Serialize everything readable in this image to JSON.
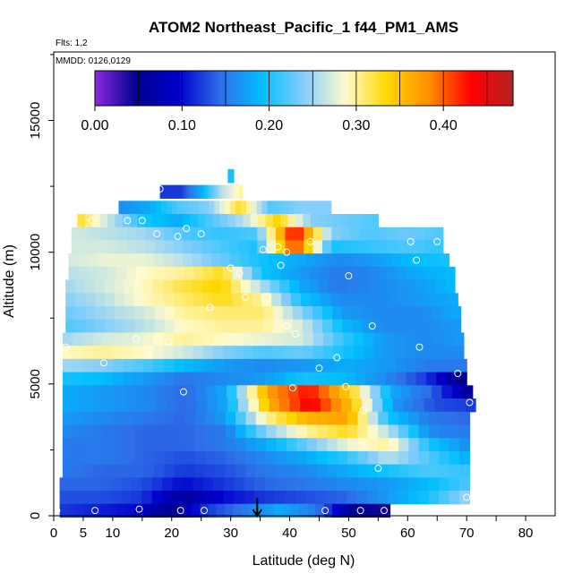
{
  "chart_data": {
    "type": "heatmap",
    "title": "ATOM2 Northeast_Pacific_1 f44_PM1_AMS",
    "subtitle_flights": "Flts: 1,2",
    "subtitle_dates": "MMDD: 0126,0129",
    "xlabel": "Latitude (deg N)",
    "ylabel": "Altitude (m)",
    "xlim": [
      0,
      85
    ],
    "ylim": [
      0,
      17600
    ],
    "x_ticks": [
      0,
      5,
      10,
      20,
      30,
      40,
      50,
      60,
      70,
      80
    ],
    "y_ticks": [
      0,
      5000,
      10000,
      15000
    ],
    "colorbar": {
      "range": [
        0,
        0.48
      ],
      "ticks": [
        "0.00",
        "0.10",
        "0.20",
        "0.30",
        "0.40"
      ],
      "tick_values": [
        0.0,
        0.1,
        0.2,
        0.3,
        0.4
      ],
      "colors": [
        "#8a2be2",
        "#00008b",
        "#0000cd",
        "#2e6fe8",
        "#00bfff",
        "#87cefa",
        "#fffacd",
        "#ffd700",
        "#ff8c00",
        "#ff0000",
        "#b22222"
      ]
    },
    "field_rows": [
      {
        "alt": 12900,
        "xmin": 29.5,
        "xmax": 30.5,
        "values": [
          0.2
        ]
      },
      {
        "alt": 12300,
        "xmin": 18,
        "xmax": 32,
        "values": [
          0.12,
          0.12,
          0.18,
          0.26,
          0.3
        ]
      },
      {
        "alt": 11700,
        "xmin": 11,
        "xmax": 47,
        "values": [
          0.16,
          0.18,
          0.22,
          0.24,
          0.33,
          0.22,
          0.24,
          0.24
        ]
      },
      {
        "alt": 11200,
        "xmin": 4,
        "xmax": 55,
        "values": [
          0.33,
          0.26,
          0.2,
          0.18,
          0.22,
          0.26,
          0.34,
          0.24,
          0.23,
          0.22
        ]
      },
      {
        "alt": 10700,
        "xmin": 3,
        "xmax": 66,
        "values": [
          0.27,
          0.26,
          0.25,
          0.22,
          0.21,
          0.22,
          0.44,
          0.24,
          0.22,
          0.23,
          0.22
        ]
      },
      {
        "alt": 10200,
        "xmin": 3,
        "xmax": 66,
        "values": [
          0.27,
          0.27,
          0.26,
          0.24,
          0.22,
          0.2,
          0.42,
          0.2,
          0.21,
          0.22,
          0.21
        ]
      },
      {
        "alt": 9700,
        "xmin": 2.5,
        "xmax": 67,
        "values": [
          0.27,
          0.28,
          0.28,
          0.26,
          0.23,
          0.2,
          0.18,
          0.16,
          0.17,
          0.19,
          0.2
        ]
      },
      {
        "alt": 9200,
        "xmin": 2.5,
        "xmax": 68,
        "values": [
          0.26,
          0.27,
          0.29,
          0.3,
          0.33,
          0.2,
          0.17,
          0.15,
          0.16,
          0.18,
          0.19
        ]
      },
      {
        "alt": 8700,
        "xmin": 2,
        "xmax": 68,
        "values": [
          0.25,
          0.27,
          0.29,
          0.32,
          0.34,
          0.26,
          0.18,
          0.15,
          0.16,
          0.17,
          0.19
        ]
      },
      {
        "alt": 8200,
        "xmin": 2,
        "xmax": 68.5,
        "values": [
          0.24,
          0.26,
          0.29,
          0.31,
          0.33,
          0.3,
          0.2,
          0.16,
          0.16,
          0.17,
          0.18
        ]
      },
      {
        "alt": 7700,
        "xmin": 2,
        "xmax": 69,
        "values": [
          0.23,
          0.25,
          0.27,
          0.3,
          0.31,
          0.31,
          0.24,
          0.17,
          0.16,
          0.16,
          0.18
        ]
      },
      {
        "alt": 7200,
        "xmin": 2,
        "xmax": 69,
        "values": [
          0.22,
          0.24,
          0.26,
          0.29,
          0.3,
          0.3,
          0.27,
          0.19,
          0.16,
          0.16,
          0.17
        ]
      },
      {
        "alt": 6700,
        "xmin": 1.5,
        "xmax": 69.5,
        "values": [
          0.25,
          0.27,
          0.28,
          0.3,
          0.29,
          0.28,
          0.27,
          0.21,
          0.17,
          0.16,
          0.17
        ]
      },
      {
        "alt": 6200,
        "xmin": 1.5,
        "xmax": 69.5,
        "values": [
          0.29,
          0.3,
          0.29,
          0.27,
          0.24,
          0.22,
          0.23,
          0.2,
          0.17,
          0.16,
          0.16
        ]
      },
      {
        "alt": 5700,
        "xmin": 1.5,
        "xmax": 70,
        "values": [
          0.25,
          0.24,
          0.22,
          0.19,
          0.17,
          0.16,
          0.17,
          0.18,
          0.17,
          0.15,
          0.15
        ]
      },
      {
        "alt": 5200,
        "xmin": 1.5,
        "xmax": 70,
        "values": [
          0.2,
          0.19,
          0.17,
          0.15,
          0.16,
          0.17,
          0.2,
          0.19,
          0.16,
          0.12,
          0.04
        ]
      },
      {
        "alt": 4700,
        "xmin": 1.5,
        "xmax": 71,
        "values": [
          0.18,
          0.17,
          0.16,
          0.14,
          0.18,
          0.37,
          0.43,
          0.34,
          0.18,
          0.14,
          0.05
        ]
      },
      {
        "alt": 4200,
        "xmin": 1.5,
        "xmax": 71.5,
        "values": [
          0.18,
          0.17,
          0.16,
          0.14,
          0.18,
          0.36,
          0.44,
          0.35,
          0.17,
          0.13,
          0.12
        ]
      },
      {
        "alt": 3700,
        "xmin": 1.5,
        "xmax": 70.5,
        "values": [
          0.17,
          0.16,
          0.15,
          0.14,
          0.17,
          0.3,
          0.36,
          0.37,
          0.2,
          0.15,
          0.14
        ]
      },
      {
        "alt": 3200,
        "xmin": 1.5,
        "xmax": 70.5,
        "values": [
          0.16,
          0.15,
          0.14,
          0.14,
          0.15,
          0.24,
          0.3,
          0.33,
          0.26,
          0.16,
          0.15
        ]
      },
      {
        "alt": 2700,
        "xmin": 1.5,
        "xmax": 70.5,
        "values": [
          0.15,
          0.15,
          0.14,
          0.14,
          0.15,
          0.18,
          0.23,
          0.28,
          0.3,
          0.2,
          0.16
        ]
      },
      {
        "alt": 2200,
        "xmin": 1.5,
        "xmax": 70.5,
        "values": [
          0.15,
          0.15,
          0.14,
          0.13,
          0.14,
          0.16,
          0.18,
          0.21,
          0.26,
          0.22,
          0.18
        ]
      },
      {
        "alt": 1700,
        "xmin": 1.5,
        "xmax": 70.5,
        "values": [
          0.15,
          0.14,
          0.14,
          0.12,
          0.13,
          0.15,
          0.16,
          0.18,
          0.2,
          0.22,
          0.21
        ]
      },
      {
        "alt": 1200,
        "xmin": 1,
        "xmax": 70.5,
        "values": [
          0.14,
          0.14,
          0.13,
          0.1,
          0.12,
          0.14,
          0.15,
          0.16,
          0.17,
          0.19,
          0.22
        ]
      },
      {
        "alt": 700,
        "xmin": 1,
        "xmax": 70.5,
        "values": [
          0.13,
          0.13,
          0.12,
          0.06,
          0.1,
          0.12,
          0.13,
          0.14,
          0.17,
          0.2,
          0.25
        ]
      },
      {
        "alt": 200,
        "xmin": 1,
        "xmax": 57,
        "values": [
          0.12,
          0.11,
          0.1,
          0.05,
          0.12,
          0.15,
          0.18,
          0.15,
          0.05,
          0.04
        ]
      }
    ],
    "sample_points": [
      [
        0.5,
        200
      ],
      [
        7,
        200
      ],
      [
        14.5,
        250
      ],
      [
        21.5,
        200
      ],
      [
        25.5,
        200
      ],
      [
        46,
        200
      ],
      [
        52,
        200
      ],
      [
        56,
        200
      ],
      [
        70,
        700
      ],
      [
        55,
        1800
      ],
      [
        52.5,
        4000
      ],
      [
        49.5,
        4900
      ],
      [
        40.5,
        4850
      ],
      [
        22,
        4700
      ],
      [
        70.5,
        4300
      ],
      [
        68.5,
        5400
      ],
      [
        45,
        5600
      ],
      [
        48,
        6000
      ],
      [
        62,
        6400
      ],
      [
        8.5,
        5800
      ],
      [
        2,
        6400
      ],
      [
        14,
        6700
      ],
      [
        19.5,
        6600
      ],
      [
        39.5,
        7200
      ],
      [
        54,
        7200
      ],
      [
        41,
        6900
      ],
      [
        26.5,
        7900
      ],
      [
        32.5,
        8300
      ],
      [
        30,
        9400
      ],
      [
        31.5,
        9200
      ],
      [
        38.5,
        9500
      ],
      [
        39.5,
        10000
      ],
      [
        50,
        9100
      ],
      [
        61.5,
        9700
      ],
      [
        65,
        10400
      ],
      [
        68.5,
        10400
      ],
      [
        60.5,
        10400
      ],
      [
        43.5,
        10400
      ],
      [
        38,
        10200
      ],
      [
        35.5,
        10100
      ],
      [
        25,
        10700
      ],
      [
        22.5,
        10900
      ],
      [
        21,
        10600
      ],
      [
        6.5,
        11200
      ],
      [
        12.5,
        11200
      ],
      [
        15,
        11200
      ],
      [
        18,
        12400
      ],
      [
        17.5,
        10700
      ]
    ],
    "marker_latitude": 34.5
  }
}
